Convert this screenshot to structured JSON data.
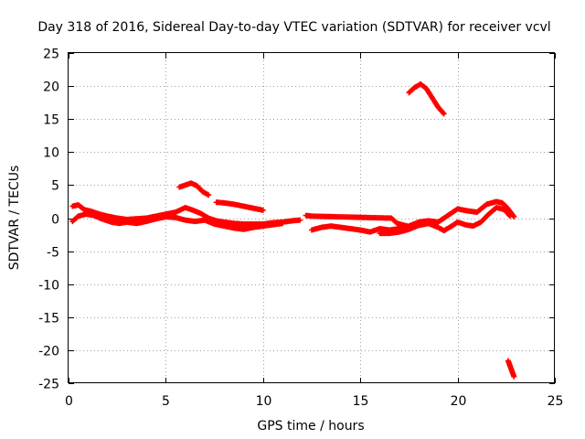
{
  "chart_data": {
    "type": "scatter",
    "title": "Day 318 of 2016, Sidereal Day-to-day VTEC variation (SDTVAR) for receiver vcvl",
    "xlabel": "GPS time / hours",
    "ylabel": "SDTVAR / TECUs",
    "xlim": [
      0,
      25
    ],
    "ylim": [
      -25,
      25
    ],
    "xticks": [
      0,
      5,
      10,
      15,
      20,
      25
    ],
    "yticks": [
      -25,
      -20,
      -15,
      -10,
      -5,
      0,
      5,
      10,
      15,
      20,
      25
    ],
    "grid": true,
    "marker": "cross",
    "color": "#ff0000",
    "segments": [
      {
        "name": "track-main-upper",
        "points": [
          [
            0.2,
            1.8
          ],
          [
            0.5,
            2.0
          ],
          [
            0.8,
            1.3
          ],
          [
            1.2,
            1.0
          ],
          [
            1.6,
            0.6
          ],
          [
            2.0,
            0.3
          ],
          [
            2.5,
            0.0
          ],
          [
            3.0,
            -0.2
          ],
          [
            3.5,
            -0.1
          ],
          [
            4.0,
            0.0
          ],
          [
            4.5,
            0.3
          ],
          [
            5.0,
            0.6
          ],
          [
            5.5,
            0.9
          ],
          [
            6.0,
            1.6
          ],
          [
            6.4,
            1.2
          ],
          [
            6.8,
            0.7
          ],
          [
            7.2,
            0.0
          ],
          [
            7.6,
            -0.4
          ],
          [
            8.0,
            -0.6
          ],
          [
            8.5,
            -0.8
          ],
          [
            9.0,
            -0.9
          ],
          [
            9.5,
            -0.9
          ],
          [
            10.0,
            -0.9
          ],
          [
            10.5,
            -0.7
          ],
          [
            11.0,
            -0.6
          ],
          [
            11.5,
            -0.4
          ],
          [
            11.9,
            -0.3
          ]
        ]
      },
      {
        "name": "track-main-lower",
        "points": [
          [
            0.2,
            -0.5
          ],
          [
            0.5,
            0.3
          ],
          [
            0.9,
            0.6
          ],
          [
            1.3,
            0.4
          ],
          [
            1.7,
            -0.1
          ],
          [
            2.2,
            -0.6
          ],
          [
            2.6,
            -0.8
          ],
          [
            3.0,
            -0.6
          ],
          [
            3.5,
            -0.8
          ],
          [
            4.0,
            -0.5
          ],
          [
            4.5,
            -0.1
          ],
          [
            5.0,
            0.2
          ],
          [
            5.5,
            0.1
          ],
          [
            6.0,
            -0.3
          ],
          [
            6.5,
            -0.5
          ],
          [
            7.0,
            -0.3
          ],
          [
            7.5,
            -0.9
          ],
          [
            8.0,
            -1.2
          ],
          [
            8.5,
            -1.5
          ],
          [
            9.0,
            -1.7
          ],
          [
            9.5,
            -1.4
          ],
          [
            10.0,
            -1.2
          ],
          [
            10.5,
            -1.0
          ],
          [
            11.0,
            -0.8
          ]
        ]
      },
      {
        "name": "track-mid-day",
        "points": [
          [
            12.5,
            -1.8
          ],
          [
            13.0,
            -1.4
          ],
          [
            13.5,
            -1.2
          ],
          [
            14.0,
            -1.4
          ],
          [
            14.5,
            -1.6
          ],
          [
            15.0,
            -1.8
          ],
          [
            15.5,
            -2.1
          ],
          [
            16.0,
            -1.6
          ],
          [
            16.5,
            -1.8
          ],
          [
            17.0,
            -1.6
          ],
          [
            17.5,
            -1.2
          ],
          [
            18.0,
            -0.6
          ],
          [
            18.5,
            -0.4
          ],
          [
            19.0,
            -0.6
          ],
          [
            19.5,
            0.4
          ],
          [
            20.0,
            1.4
          ],
          [
            20.5,
            1.1
          ],
          [
            21.0,
            0.9
          ],
          [
            21.5,
            2.1
          ],
          [
            22.0,
            2.5
          ],
          [
            22.3,
            2.3
          ],
          [
            22.6,
            1.4
          ],
          [
            22.8,
            0.6
          ],
          [
            22.9,
            0.2
          ]
        ]
      },
      {
        "name": "track-mid-day-lower",
        "points": [
          [
            16.0,
            -2.3
          ],
          [
            16.5,
            -2.3
          ],
          [
            17.0,
            -2.1
          ],
          [
            17.5,
            -1.7
          ],
          [
            18.0,
            -1.1
          ],
          [
            18.5,
            -0.8
          ],
          [
            19.0,
            -1.4
          ],
          [
            19.3,
            -1.9
          ],
          [
            19.7,
            -1.2
          ],
          [
            20.0,
            -0.6
          ],
          [
            20.4,
            -1.0
          ],
          [
            20.8,
            -1.2
          ],
          [
            21.2,
            -0.6
          ],
          [
            21.6,
            0.6
          ],
          [
            22.0,
            1.6
          ],
          [
            22.4,
            1.3
          ],
          [
            22.7,
            0.3
          ]
        ]
      },
      {
        "name": "track-brief-dip",
        "points": [
          [
            12.2,
            0.4
          ],
          [
            12.5,
            0.3
          ],
          [
            16.6,
            0.0
          ],
          [
            16.9,
            -0.8
          ],
          [
            17.4,
            -1.2
          ]
        ]
      },
      {
        "name": "track-bump",
        "points": [
          [
            5.7,
            4.7
          ],
          [
            6.0,
            5.0
          ],
          [
            6.3,
            5.3
          ],
          [
            6.6,
            4.9
          ],
          [
            6.9,
            4.0
          ],
          [
            7.2,
            3.5
          ]
        ]
      },
      {
        "name": "track-plateau",
        "points": [
          [
            7.6,
            2.4
          ],
          [
            8.0,
            2.3
          ],
          [
            8.5,
            2.1
          ],
          [
            9.0,
            1.8
          ],
          [
            9.5,
            1.5
          ],
          [
            10.0,
            1.2
          ]
        ]
      },
      {
        "name": "track-high-arc",
        "points": [
          [
            17.5,
            19.0
          ],
          [
            17.8,
            19.8
          ],
          [
            18.1,
            20.3
          ],
          [
            18.4,
            19.6
          ],
          [
            18.7,
            18.2
          ],
          [
            19.0,
            16.8
          ],
          [
            19.3,
            15.8
          ]
        ]
      },
      {
        "name": "track-low-drop",
        "points": [
          [
            22.6,
            -21.6
          ],
          [
            22.7,
            -22.4
          ],
          [
            22.8,
            -23.2
          ],
          [
            22.9,
            -24.0
          ]
        ]
      }
    ]
  }
}
